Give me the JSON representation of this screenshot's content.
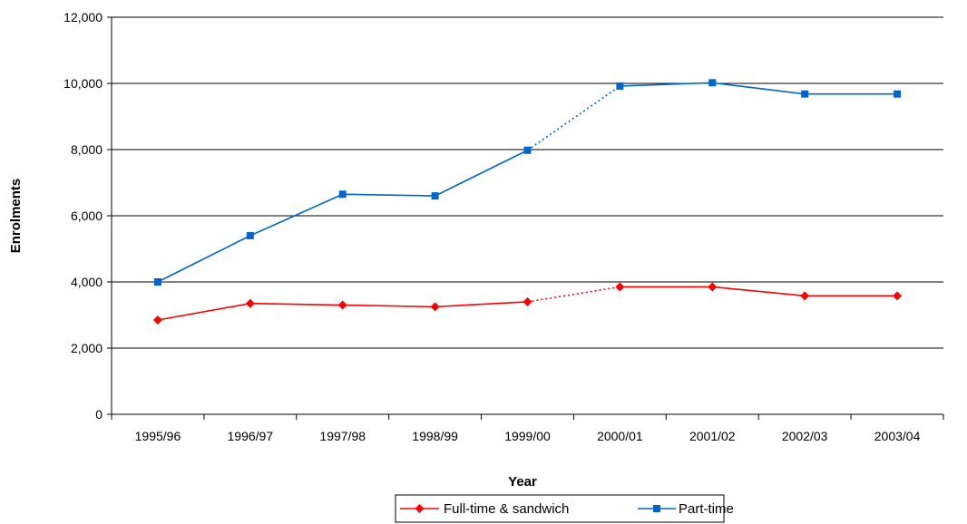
{
  "chart_data": {
    "type": "line",
    "categories": [
      "1995/96",
      "1996/97",
      "1997/98",
      "1998/99",
      "1999/00",
      "2000/01",
      "2001/02",
      "2002/03",
      "2003/04"
    ],
    "series": [
      {
        "name": "Full-time & sandwich",
        "values": [
          2850,
          3350,
          3300,
          3250,
          3400,
          3850,
          3850,
          3580,
          3580
        ],
        "color": "#ff0000",
        "marker": "diamond",
        "dotted_segment": [
          "1999/00",
          "2000/01"
        ]
      },
      {
        "name": "Part-time",
        "values": [
          4000,
          5400,
          6650,
          6600,
          7980,
          9920,
          10020,
          9680,
          9680
        ],
        "color": "#0066cc",
        "marker": "square",
        "dotted_segment": [
          "1999/00",
          "2000/01"
        ]
      }
    ],
    "xlabel": "Year",
    "ylabel": "Enrolments",
    "ylim": [
      0,
      12000
    ],
    "yticks": [
      0,
      2000,
      4000,
      6000,
      8000,
      10000,
      12000
    ],
    "ytick_labels": [
      "0",
      "2,000",
      "4,000",
      "6,000",
      "8,000",
      "10,000",
      "12,000"
    ],
    "grid": "horizontal",
    "legend_position": "bottom-center"
  }
}
